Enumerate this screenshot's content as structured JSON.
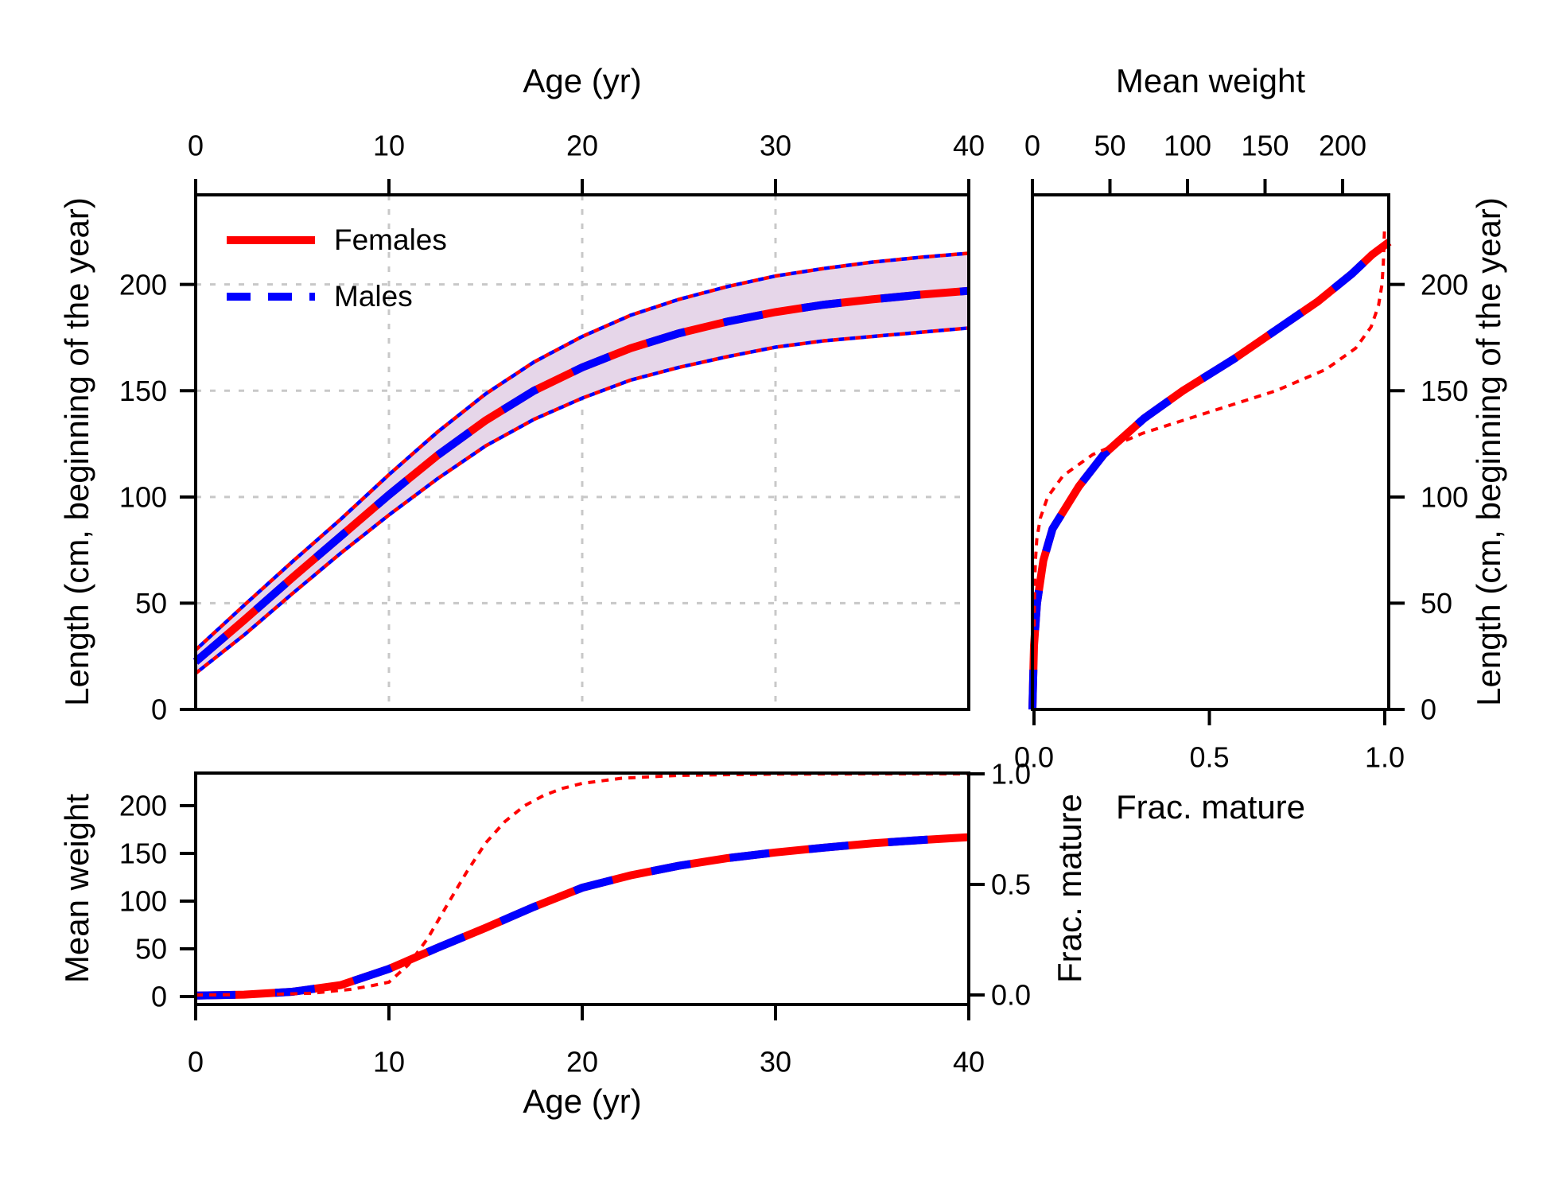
{
  "figure": {
    "background": "#FFFFFF"
  },
  "colors": {
    "females": "#FF0000",
    "males": "#0000FF",
    "band": "#E6D6E9",
    "maturity": "#FF0000",
    "grid": "#C8C8C8",
    "frame": "#000000",
    "text": "#000000"
  },
  "legend": {
    "items": [
      {
        "label": "Females",
        "style": "solid",
        "color": "#FF0000"
      },
      {
        "label": "Males",
        "style": "dashed",
        "color": "#0000FF"
      }
    ]
  },
  "chart_data": [
    {
      "id": "growth_at_age",
      "type": "line",
      "panel": "top-left",
      "xlabel": "Age (yr)",
      "ylabel": "Length (cm, beginning of the year)",
      "xlim": [
        0,
        40
      ],
      "ylim": [
        0,
        242
      ],
      "xticks": [
        0,
        10,
        20,
        30,
        40
      ],
      "yticks": [
        0,
        50,
        100,
        150,
        200
      ],
      "grid": true,
      "series": [
        {
          "name": "mean-length-females-males-overlaid",
          "x": [
            0,
            2.5,
            5,
            7.5,
            10,
            12.5,
            15,
            17.5,
            20,
            22.5,
            25,
            27.5,
            30,
            32.5,
            35,
            37.5,
            40
          ],
          "y": [
            22.5,
            42,
            62,
            81.5,
            101,
            119.5,
            136,
            150,
            161,
            170,
            177,
            182.5,
            187,
            190.5,
            193,
            195.2,
            197
          ]
        },
        {
          "name": "upper-sd-envelope",
          "x": [
            0,
            2.5,
            5,
            7.5,
            10,
            12.5,
            15,
            17.5,
            20,
            22.5,
            25,
            27.5,
            30,
            32.5,
            35,
            37.5,
            40
          ],
          "y": [
            28,
            49,
            69.5,
            89.5,
            110.5,
            130.5,
            148.5,
            163.5,
            175.5,
            185.5,
            193,
            199,
            204,
            207.5,
            210.5,
            212.8,
            214.7
          ]
        },
        {
          "name": "lower-sd-envelope",
          "x": [
            0,
            2.5,
            5,
            7.5,
            10,
            12.5,
            15,
            17.5,
            20,
            22.5,
            25,
            27.5,
            30,
            32.5,
            35,
            37.5,
            40
          ],
          "y": [
            17,
            35,
            54.5,
            73.5,
            91.5,
            108.5,
            124,
            136.5,
            146.5,
            155,
            161,
            166,
            170.5,
            173.5,
            175.5,
            177.5,
            179.5
          ]
        }
      ]
    },
    {
      "id": "weight_and_maturity_at_length",
      "type": "line",
      "panel": "top-right",
      "top_axis": {
        "label": "Mean weight",
        "ticks": [
          0,
          50,
          100,
          150,
          200
        ],
        "lim": [
          0,
          229.7
        ]
      },
      "bottom_axis": {
        "label": "Frac. mature",
        "ticks": [
          "0.0",
          "0.5",
          "1.0"
        ],
        "lim": [
          0,
          1
        ]
      },
      "right_axis": {
        "label": "Length (cm, beginning of the year)",
        "ticks": [
          0,
          50,
          100,
          150,
          200
        ],
        "lim": [
          0,
          242
        ]
      },
      "series": [
        {
          "name": "mean-weight-at-length-females-males-overlaid",
          "weight": [
            0,
            1,
            3,
            7,
            13,
            30,
            46,
            72,
            97,
            130,
            160,
            184,
            206,
            219,
            230
          ],
          "length": [
            0,
            30,
            50,
            70,
            85,
            105,
            120,
            137,
            150,
            165,
            180,
            192,
            205,
            214,
            220
          ]
        },
        {
          "name": "fraction-mature-at-length",
          "frac": [
            0.0002,
            0.0008,
            0.002,
            0.004,
            0.008,
            0.018,
            0.039,
            0.083,
            0.168,
            0.31,
            0.5,
            0.69,
            0.832,
            0.917,
            0.961,
            0.982,
            0.992,
            0.996,
            0.998,
            0.999
          ],
          "length": [
            20,
            45,
            60,
            70,
            80,
            90,
            100,
            110,
            120,
            130,
            140,
            150,
            160,
            170,
            180,
            190,
            200,
            210,
            220,
            225
          ]
        }
      ]
    },
    {
      "id": "weight_and_maturity_at_age",
      "type": "line",
      "panel": "bottom-left",
      "xlabel": "Age (yr)",
      "xticks": [
        0,
        10,
        20,
        30,
        40
      ],
      "left_axis": {
        "label": "Mean weight",
        "ticks": [
          0,
          50,
          100,
          150,
          200
        ],
        "lim": [
          0,
          234.2
        ]
      },
      "right_axis": {
        "label": "Frac. mature",
        "ticks": [
          "0.0",
          "0.5",
          "1.0"
        ],
        "lim": [
          0,
          1
        ]
      },
      "series": [
        {
          "name": "mean-weight-at-age-females-males-overlaid",
          "x": [
            0,
            2.5,
            5,
            7.5,
            10,
            12.5,
            15,
            17.5,
            20,
            22.5,
            25,
            27.5,
            30,
            32.5,
            35,
            37.5,
            40
          ],
          "y": [
            1,
            2,
            5,
            12,
            29,
            51,
            72,
            94,
            114,
            127,
            137,
            145,
            151,
            156,
            160.5,
            164,
            167
          ]
        },
        {
          "name": "fraction-mature-at-age",
          "x": [
            0,
            2,
            4,
            6,
            8,
            9,
            10,
            11,
            12,
            13,
            14,
            15,
            16,
            17,
            18,
            19,
            20,
            22,
            25,
            30,
            35,
            40
          ],
          "y": [
            0,
            0.001,
            0.003,
            0.008,
            0.025,
            0.04,
            0.058,
            0.136,
            0.255,
            0.405,
            0.553,
            0.687,
            0.784,
            0.855,
            0.902,
            0.935,
            0.957,
            0.98,
            0.993,
            0.999,
            1,
            1
          ]
        }
      ]
    }
  ]
}
